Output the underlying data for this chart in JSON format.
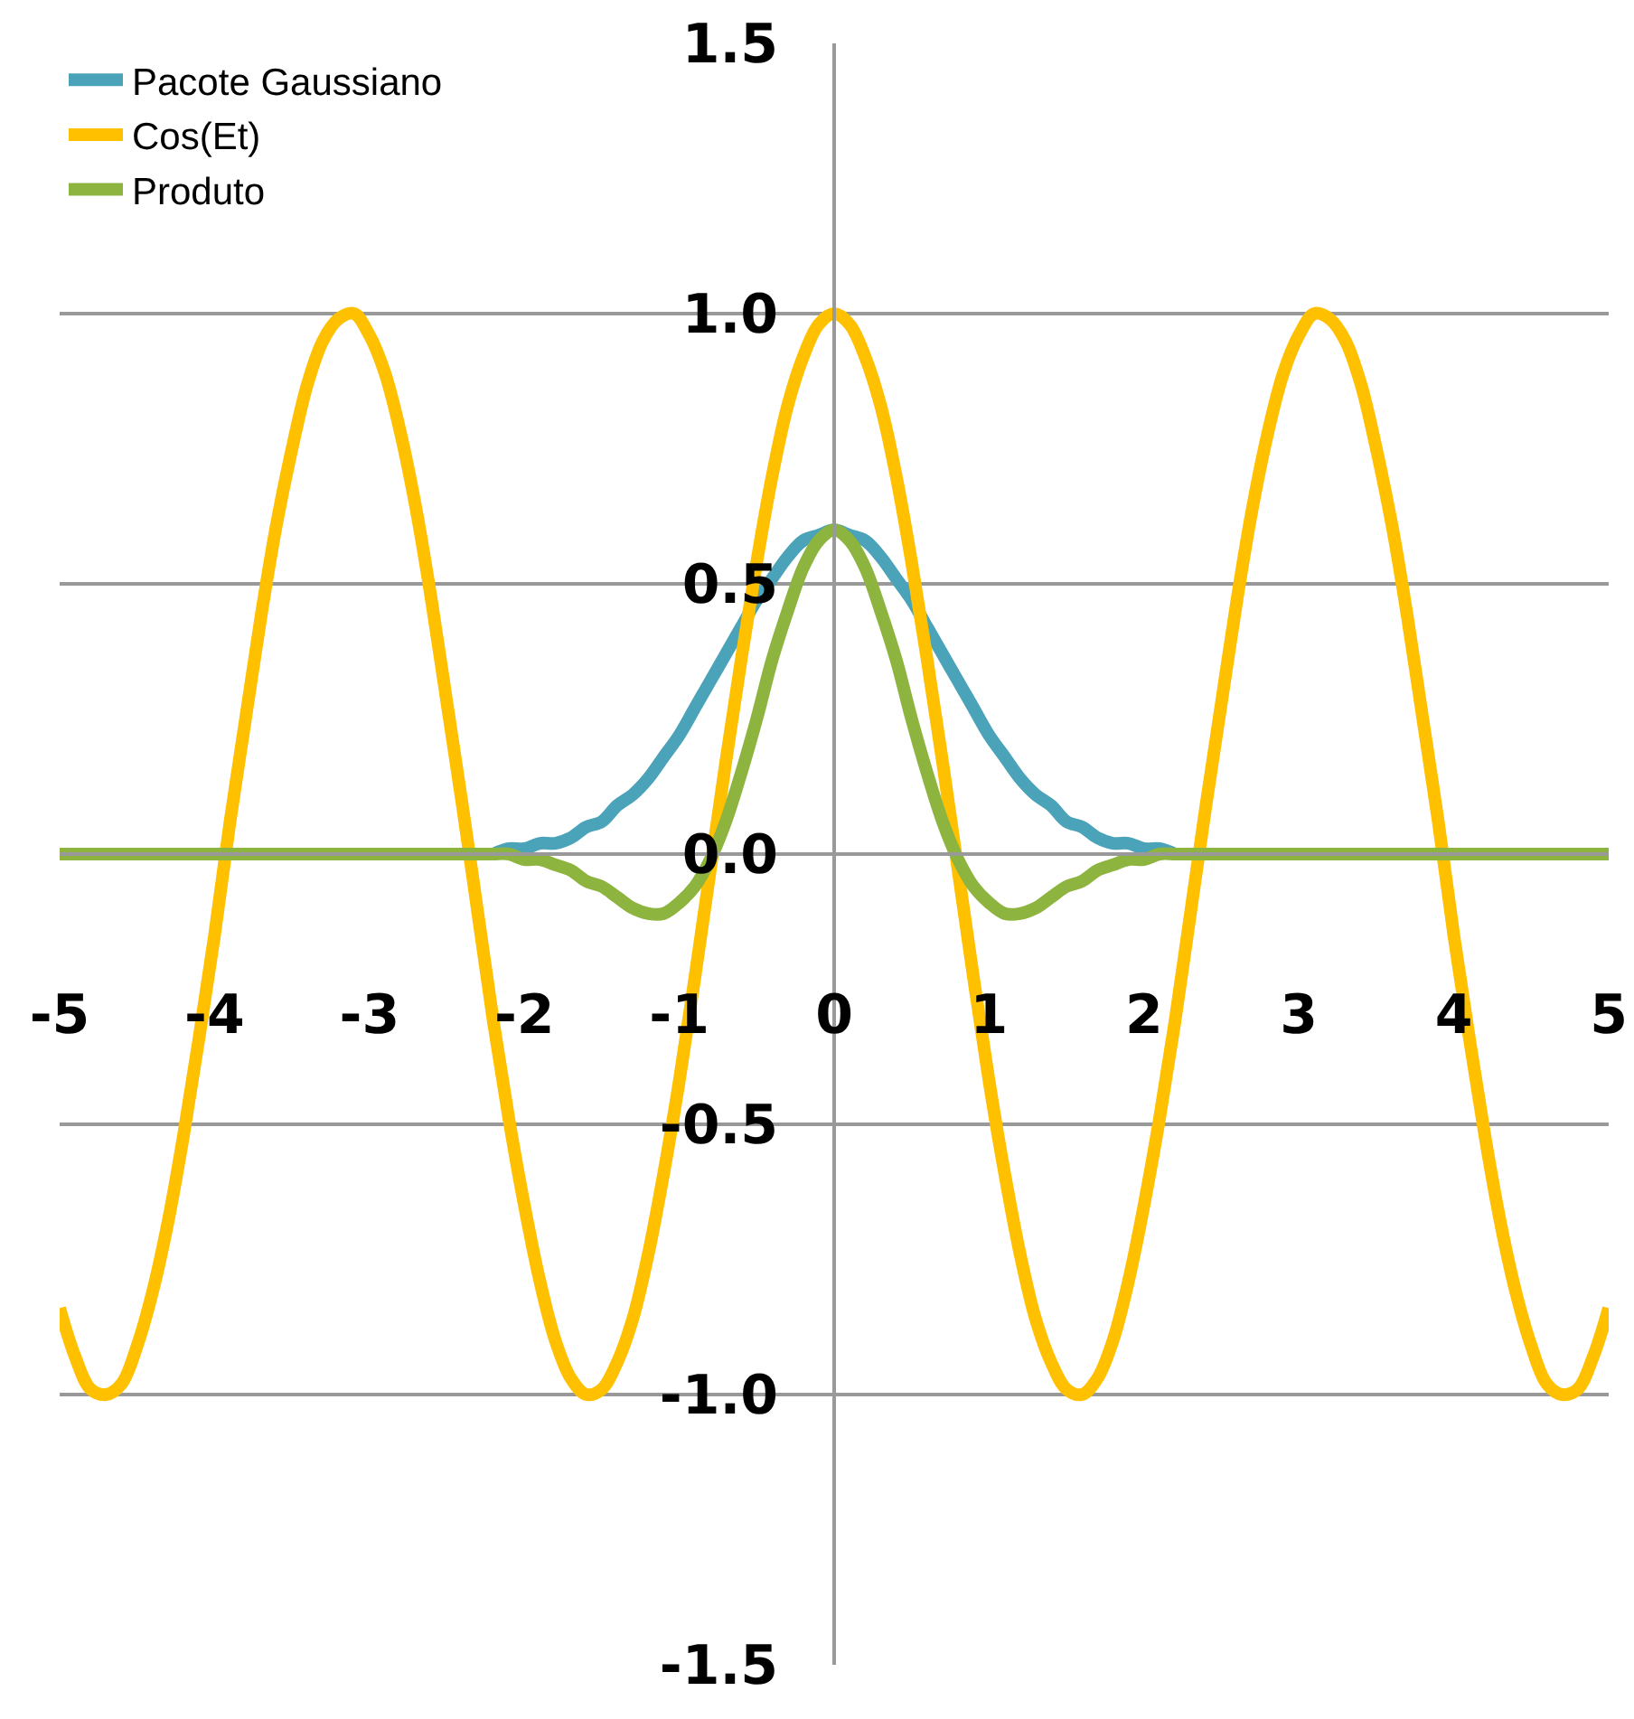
{
  "chart_data": {
    "type": "line",
    "x": [
      -5,
      -4.9,
      -4.8,
      -4.7,
      -4.6,
      -4.5,
      -4.4,
      -4.3,
      -4.2,
      -4.1,
      -4,
      -3.9,
      -3.8,
      -3.7,
      -3.6,
      -3.5,
      -3.4,
      -3.3,
      -3.2,
      -3.1,
      -3,
      -2.9,
      -2.8,
      -2.7,
      -2.6,
      -2.5,
      -2.4,
      -2.3,
      -2.2,
      -2.1,
      -2,
      -1.9,
      -1.8,
      -1.7,
      -1.6,
      -1.5,
      -1.4,
      -1.3,
      -1.2,
      -1.1,
      -1,
      -0.9,
      -0.8,
      -0.7,
      -0.6,
      -0.5,
      -0.4,
      -0.3,
      -0.2,
      -0.1,
      0,
      0.1,
      0.2,
      0.3,
      0.4,
      0.5,
      0.6,
      0.7,
      0.8,
      0.9,
      1,
      1.1,
      1.2,
      1.3,
      1.4,
      1.5,
      1.6,
      1.7,
      1.8,
      1.9,
      2,
      2.1,
      2.2,
      2.3,
      2.4,
      2.5,
      2.6,
      2.7,
      2.8,
      2.9,
      3,
      3.1,
      3.2,
      3.3,
      3.4,
      3.5,
      3.6,
      3.7,
      3.8,
      3.9,
      4,
      4.1,
      4.2,
      4.3,
      4.4,
      4.5,
      4.6,
      4.7,
      4.8,
      4.9,
      5
    ],
    "series": [
      {
        "name": "Pacote Gaussiano",
        "color": "#4aa3b8",
        "values": [
          null,
          null,
          null,
          null,
          null,
          null,
          null,
          null,
          null,
          null,
          null,
          null,
          null,
          null,
          null,
          null,
          null,
          null,
          null,
          null,
          null,
          null,
          null,
          null,
          null,
          null,
          null,
          null,
          0,
          0.01,
          0.01,
          0.02,
          0.02,
          0.03,
          0.05,
          0.06,
          0.09,
          0.11,
          0.14,
          0.18,
          0.22,
          0.27,
          0.32,
          0.37,
          0.42,
          0.47,
          0.51,
          0.55,
          0.58,
          0.59,
          0.6,
          0.59,
          0.58,
          0.55,
          0.51,
          0.47,
          0.42,
          0.37,
          0.32,
          0.27,
          0.22,
          0.18,
          0.14,
          0.11,
          0.09,
          0.06,
          0.05,
          0.03,
          0.02,
          0.02,
          0.01,
          0.01,
          0,
          null,
          null,
          null,
          null,
          null,
          null,
          null,
          null,
          null,
          null,
          null,
          null,
          null,
          null,
          null,
          null,
          null,
          null,
          null,
          null,
          null,
          null,
          null,
          null,
          null,
          null,
          null,
          null
        ]
      },
      {
        "name": "Cos(Et)",
        "color": "#ffc000",
        "values": [
          -0.84,
          -0.93,
          -0.99,
          -1.0,
          -0.98,
          -0.91,
          -0.81,
          -0.68,
          -0.52,
          -0.34,
          -0.15,
          0.06,
          0.25,
          0.44,
          0.61,
          0.75,
          0.87,
          0.95,
          0.99,
          1.0,
          0.96,
          0.89,
          0.78,
          0.64,
          0.47,
          0.28,
          0.09,
          -0.11,
          -0.31,
          -0.49,
          -0.65,
          -0.79,
          -0.9,
          -0.97,
          -1.0,
          -0.99,
          -0.94,
          -0.86,
          -0.74,
          -0.59,
          -0.42,
          -0.23,
          -0.03,
          0.17,
          0.36,
          0.54,
          0.7,
          0.83,
          0.92,
          0.98,
          1,
          0.98,
          0.92,
          0.83,
          0.7,
          0.54,
          0.36,
          0.17,
          -0.03,
          -0.23,
          -0.42,
          -0.59,
          -0.74,
          -0.86,
          -0.94,
          -0.99,
          -1.0,
          -0.97,
          -0.9,
          -0.79,
          -0.65,
          -0.49,
          -0.31,
          -0.11,
          0.09,
          0.28,
          0.47,
          0.64,
          0.78,
          0.89,
          0.96,
          1.0,
          0.99,
          0.95,
          0.87,
          0.75,
          0.61,
          0.44,
          0.25,
          0.06,
          -0.15,
          -0.34,
          -0.52,
          -0.68,
          -0.81,
          -0.91,
          -0.98,
          -1.0,
          -0.99,
          -0.93,
          -0.84
        ]
      },
      {
        "name": "Produto",
        "color": "#8db43e",
        "values": [
          0,
          0,
          0,
          0,
          0,
          0,
          0,
          0,
          0,
          0,
          0,
          0,
          0,
          0,
          0,
          0,
          0,
          0,
          0,
          0,
          0,
          0,
          0,
          0,
          0,
          0,
          0,
          0,
          0,
          0,
          -0.01,
          -0.01,
          -0.02,
          -0.03,
          -0.05,
          -0.06,
          -0.08,
          -0.1,
          -0.11,
          -0.11,
          -0.09,
          -0.06,
          -0.01,
          0.06,
          0.15,
          0.25,
          0.36,
          0.45,
          0.53,
          0.58,
          0.6,
          0.58,
          0.53,
          0.45,
          0.36,
          0.25,
          0.15,
          0.06,
          -0.01,
          -0.06,
          -0.09,
          -0.11,
          -0.11,
          -0.1,
          -0.08,
          -0.06,
          -0.05,
          -0.03,
          -0.02,
          -0.01,
          -0.01,
          0,
          0,
          0,
          0,
          0,
          0,
          0,
          0,
          0,
          0,
          0,
          0,
          0,
          0,
          0,
          0,
          0,
          0,
          0,
          0,
          0,
          0,
          0,
          0,
          0,
          0,
          0,
          0,
          0,
          0
        ]
      }
    ],
    "xlim": [
      -5,
      5
    ],
    "xticks": [
      -5,
      -4,
      -3,
      -2,
      -1,
      0,
      1,
      2,
      3,
      4,
      5
    ],
    "ylim": [
      -1.5,
      1.5
    ],
    "yticks": [
      {
        "value": -1.5,
        "label": "-1.5"
      },
      {
        "value": -1,
        "label": "-1.0"
      },
      {
        "value": -0.5,
        "label": "-0.5"
      },
      {
        "value": 0,
        "label": "0.0"
      },
      {
        "value": 0.5,
        "label": "0.5"
      },
      {
        "value": 1,
        "label": "1.0"
      },
      {
        "value": 1.5,
        "label": "1.5"
      }
    ],
    "grid": "y",
    "legend": "top left",
    "marker": "none",
    "line_style": "solid"
  }
}
